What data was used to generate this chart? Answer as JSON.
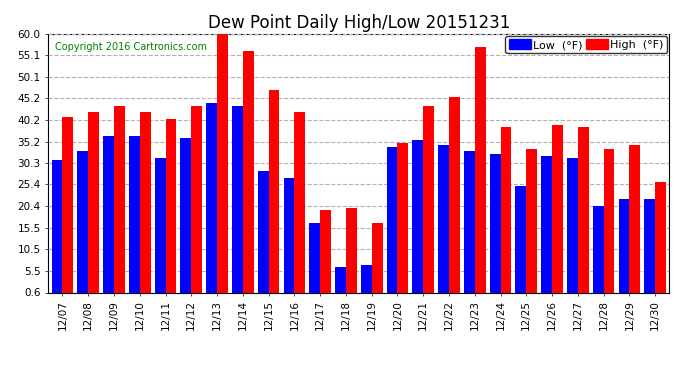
{
  "title": "Dew Point Daily High/Low 20151231",
  "copyright": "Copyright 2016 Cartronics.com",
  "dates": [
    "12/07",
    "12/08",
    "12/09",
    "12/10",
    "12/11",
    "12/12",
    "12/13",
    "12/14",
    "12/15",
    "12/16",
    "12/17",
    "12/18",
    "12/19",
    "12/20",
    "12/21",
    "12/22",
    "12/23",
    "12/24",
    "12/25",
    "12/26",
    "12/27",
    "12/28",
    "12/29",
    "12/30"
  ],
  "high": [
    41.0,
    42.0,
    43.5,
    42.0,
    40.5,
    43.5,
    60.0,
    56.0,
    47.0,
    42.0,
    19.5,
    20.0,
    16.5,
    35.0,
    43.5,
    45.5,
    57.0,
    38.5,
    33.5,
    39.0,
    38.5,
    33.5,
    34.5,
    26.0
  ],
  "low": [
    31.0,
    33.0,
    36.5,
    36.5,
    31.5,
    36.0,
    44.0,
    43.5,
    28.5,
    27.0,
    16.5,
    6.5,
    7.0,
    34.0,
    35.5,
    34.5,
    33.0,
    32.5,
    25.0,
    32.0,
    31.5,
    20.5,
    22.0,
    22.0
  ],
  "high_color": "#ff0000",
  "low_color": "#0000ff",
  "bg_color": "#ffffff",
  "grid_color": "#b0b0b0",
  "yticks": [
    0.6,
    5.5,
    10.5,
    15.5,
    20.4,
    25.4,
    30.3,
    35.2,
    40.2,
    45.2,
    50.1,
    55.1,
    60.0
  ],
  "ylim": [
    0.6,
    60.0
  ],
  "bar_width": 0.42,
  "title_fontsize": 12,
  "tick_fontsize": 7.5,
  "legend_fontsize": 8
}
